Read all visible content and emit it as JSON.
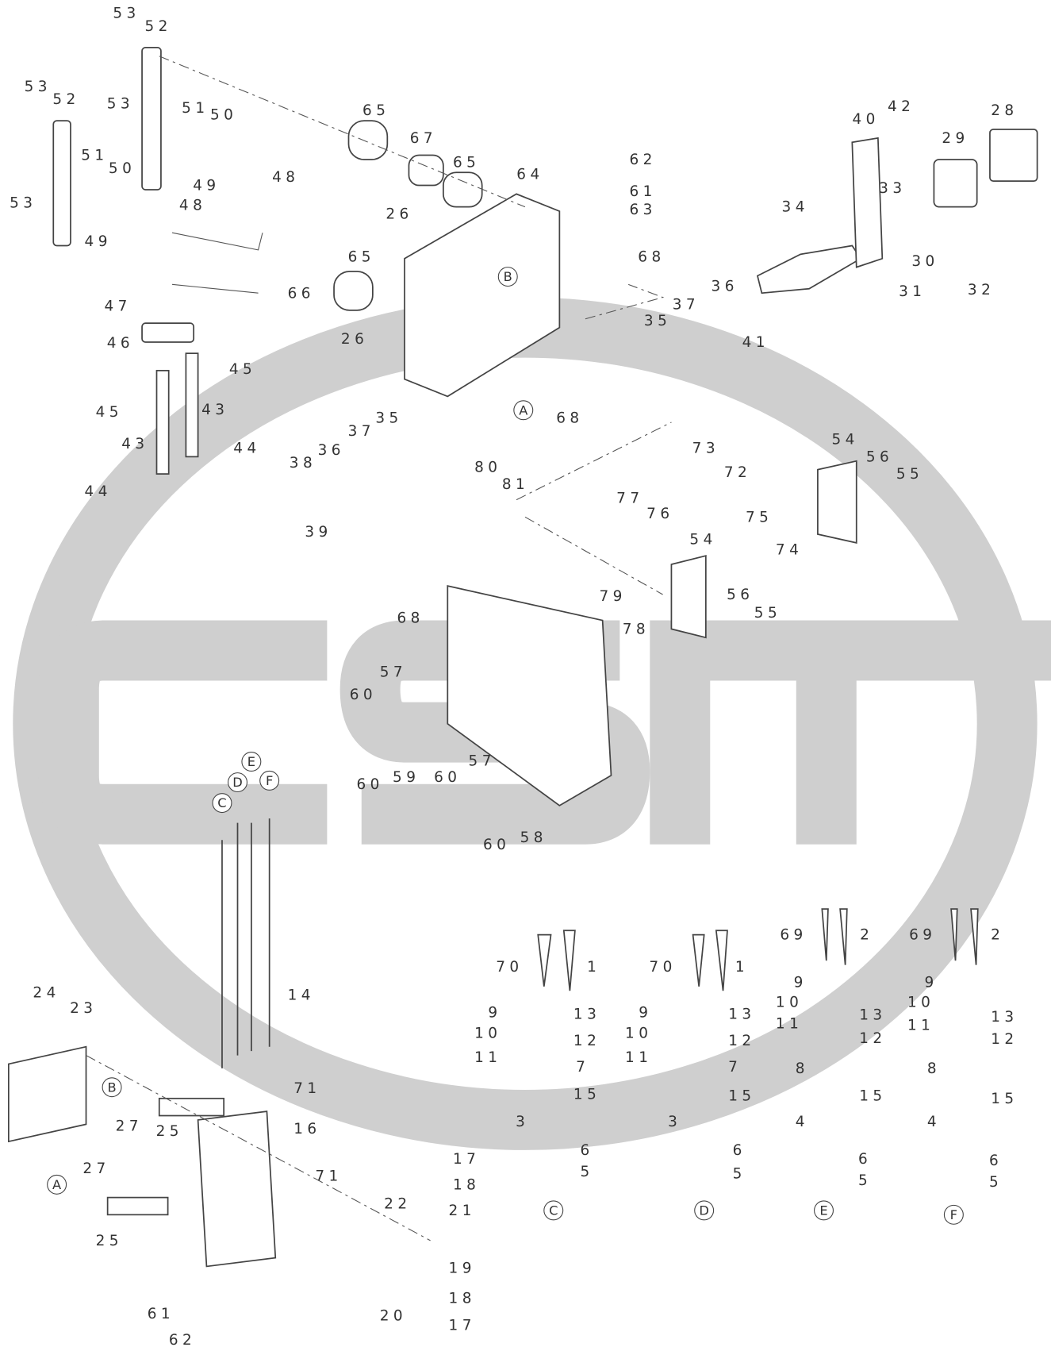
{
  "callouts": [
    "53",
    "52",
    "53",
    "52",
    "53",
    "51",
    "50",
    "51",
    "50",
    "48",
    "49",
    "48",
    "53",
    "49",
    "47",
    "46",
    "45",
    "45",
    "43",
    "43",
    "44",
    "44",
    "65",
    "67",
    "65",
    "64",
    "62",
    "61",
    "26",
    "63",
    "65",
    "68",
    "66",
    "26",
    "B",
    "A",
    "68",
    "35",
    "37",
    "36",
    "38",
    "39",
    "80",
    "81",
    "28",
    "42",
    "40",
    "29",
    "33",
    "34",
    "30",
    "31",
    "32",
    "36",
    "37",
    "35",
    "41",
    "73",
    "72",
    "54",
    "56",
    "55",
    "75",
    "74",
    "77",
    "76",
    "54",
    "79",
    "78",
    "56",
    "55",
    "68",
    "57",
    "60",
    "60",
    "59",
    "60",
    "57",
    "60",
    "58",
    "E",
    "D",
    "F",
    "C",
    "14",
    "24",
    "23",
    "B",
    "27",
    "71",
    "25",
    "16",
    "A",
    "27",
    "71",
    "25",
    "17",
    "18",
    "22",
    "21",
    "19",
    "61",
    "20",
    "18",
    "17",
    "62",
    "70",
    "1",
    "9",
    "13",
    "10",
    "12",
    "11",
    "7",
    "15",
    "3",
    "6",
    "5",
    "C",
    "70",
    "1",
    "9",
    "13",
    "10",
    "12",
    "11",
    "7",
    "15",
    "3",
    "6",
    "5",
    "D",
    "69",
    "2",
    "9",
    "10",
    "13",
    "11",
    "12",
    "8",
    "15",
    "4",
    "6",
    "5",
    "E",
    "69",
    "2",
    "9",
    "10",
    "13",
    "11",
    "12",
    "8",
    "15",
    "4",
    "6",
    "5",
    "F"
  ]
}
